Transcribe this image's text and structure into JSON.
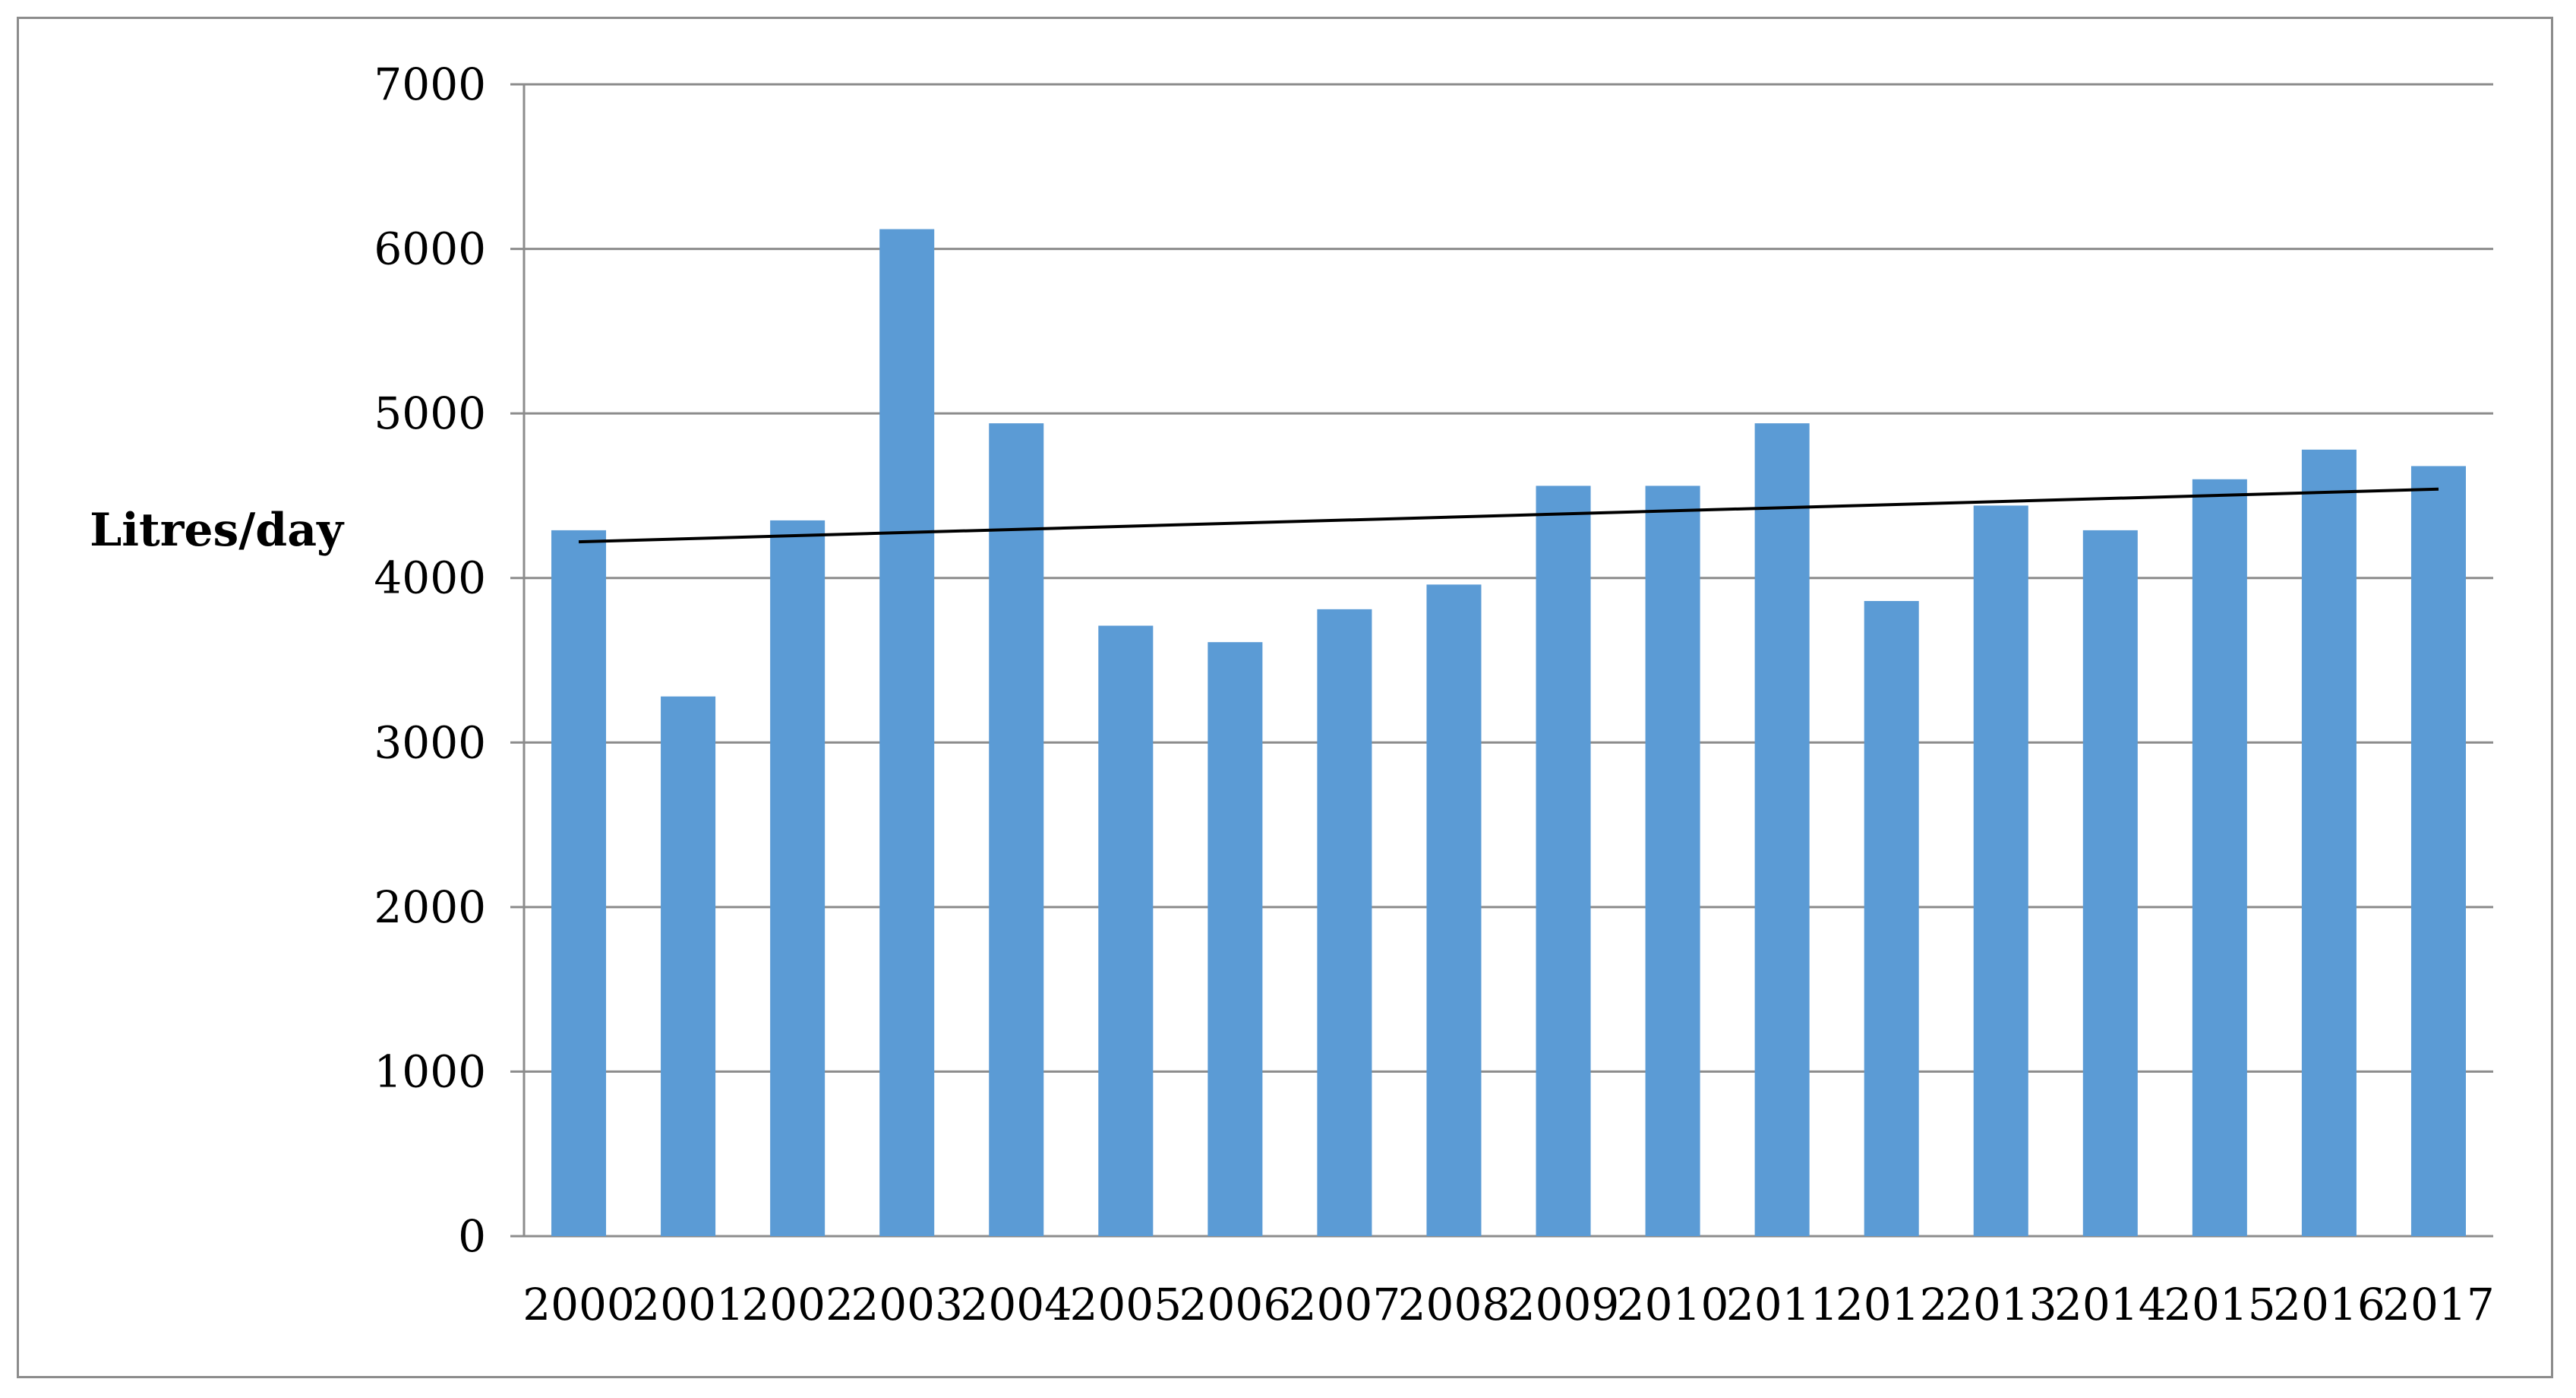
{
  "chart_data": {
    "type": "bar",
    "title": "",
    "xlabel": "",
    "ylabel": "Litres/day",
    "ylim": [
      0,
      7000
    ],
    "yticks": [
      0,
      1000,
      2000,
      3000,
      4000,
      5000,
      6000,
      7000
    ],
    "grid": true,
    "legend": "none",
    "bar_color": "#5b9bd5",
    "categories": [
      "2000",
      "2001",
      "2002",
      "2003",
      "2004",
      "2005",
      "2006",
      "2007",
      "2008",
      "2009",
      "2010",
      "2011",
      "2012",
      "2013",
      "2014",
      "2015",
      "2016",
      "2017"
    ],
    "values": [
      4290,
      3280,
      4350,
      6120,
      4940,
      3710,
      3610,
      3810,
      3960,
      4560,
      4560,
      4940,
      3860,
      4440,
      4290,
      4600,
      4780,
      4680
    ],
    "trendline": {
      "type": "linear",
      "color": "#000000",
      "start": 4220,
      "end": 4540
    }
  }
}
